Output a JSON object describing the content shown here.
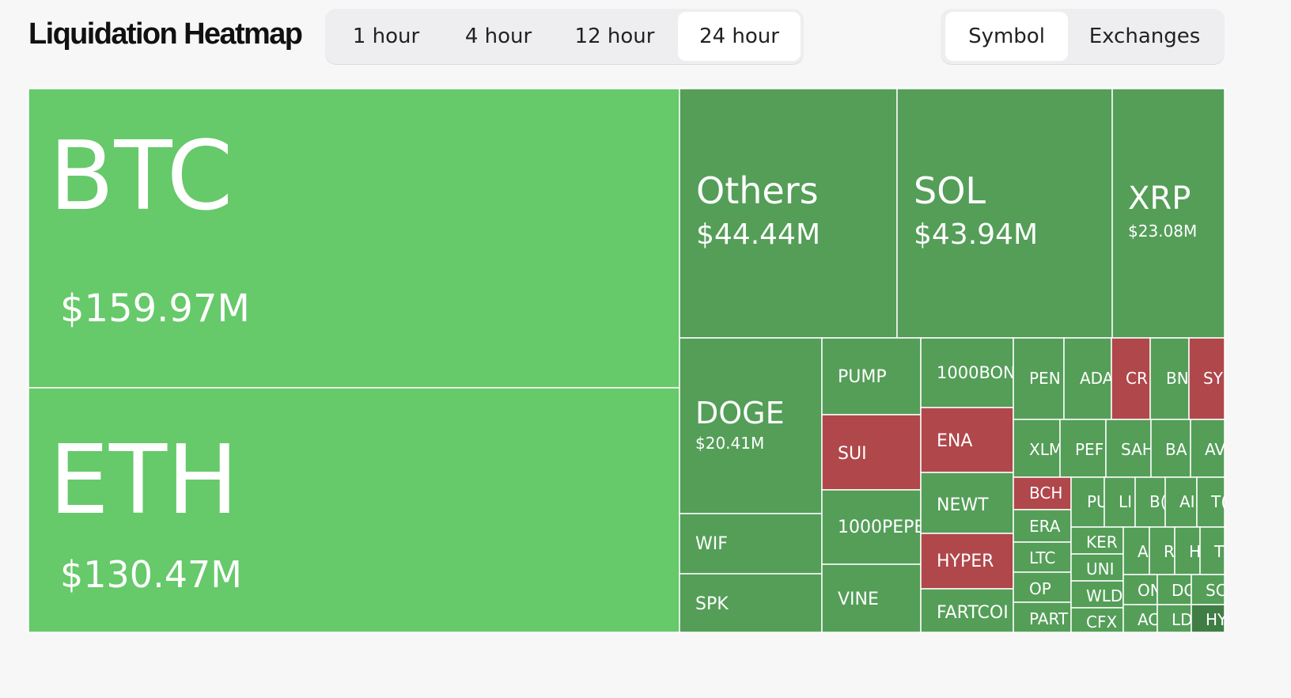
{
  "header": {
    "title": "Liquidation Heatmap"
  },
  "time_tabs": [
    {
      "label": "1 hour",
      "active": false
    },
    {
      "label": "4 hour",
      "active": false
    },
    {
      "label": "12 hour",
      "active": false
    },
    {
      "label": "24 hour",
      "active": true
    }
  ],
  "view_tabs": [
    {
      "label": "Symbol",
      "active": true
    },
    {
      "label": "Exchanges",
      "active": false
    }
  ],
  "colors": {
    "bright": "#66c96a",
    "green": "#549e58",
    "red": "#b0474b",
    "dark": "#3f7d45"
  },
  "chart_data": {
    "type": "treemap",
    "title": "",
    "units": "USD millions",
    "cells": [
      {
        "label": "BTC",
        "value": 159.97,
        "value_label": "$159.97M",
        "color": "bright"
      },
      {
        "label": "ETH",
        "value": 130.47,
        "value_label": "$130.47M",
        "color": "bright"
      },
      {
        "label": "Others",
        "value": 44.44,
        "value_label": "$44.44M",
        "color": "green"
      },
      {
        "label": "SOL",
        "value": 43.94,
        "value_label": "$43.94M",
        "color": "green"
      },
      {
        "label": "XRP",
        "value": 23.08,
        "value_label": "$23.08M",
        "color": "green"
      },
      {
        "label": "DOGE",
        "value": 20.41,
        "value_label": "$20.41M",
        "color": "green"
      },
      {
        "label": "WIF",
        "color": "green"
      },
      {
        "label": "SPK",
        "color": "green"
      },
      {
        "label": "PUMP",
        "color": "green"
      },
      {
        "label": "SUI",
        "color": "red"
      },
      {
        "label": "1000PEPE",
        "color": "green"
      },
      {
        "label": "VINE",
        "color": "green"
      },
      {
        "label": "1000BON",
        "color": "green"
      },
      {
        "label": "ENA",
        "color": "red"
      },
      {
        "label": "NEWT",
        "color": "green"
      },
      {
        "label": "HYPER",
        "color": "red"
      },
      {
        "label": "FARTCOI",
        "color": "green"
      },
      {
        "label": "PEN",
        "color": "green"
      },
      {
        "label": "ADA",
        "color": "green"
      },
      {
        "label": "CR",
        "color": "red"
      },
      {
        "label": "BN",
        "color": "green"
      },
      {
        "label": "SY",
        "color": "red"
      },
      {
        "label": "XLM",
        "color": "green"
      },
      {
        "label": "PEF",
        "color": "green"
      },
      {
        "label": "SAH",
        "color": "green"
      },
      {
        "label": "BA",
        "color": "green"
      },
      {
        "label": "AV",
        "color": "green"
      },
      {
        "label": "BCH",
        "color": "red"
      },
      {
        "label": "ERA",
        "color": "green"
      },
      {
        "label": "LTC",
        "color": "green"
      },
      {
        "label": "OP",
        "color": "green"
      },
      {
        "label": "PART",
        "color": "green"
      },
      {
        "label": "PU",
        "color": "green"
      },
      {
        "label": "LI",
        "color": "green"
      },
      {
        "label": "B(",
        "color": "green"
      },
      {
        "label": "AI",
        "color": "green"
      },
      {
        "label": "T(",
        "color": "green"
      },
      {
        "label": "KER",
        "color": "green"
      },
      {
        "label": "UNI",
        "color": "green"
      },
      {
        "label": "WLD",
        "color": "green"
      },
      {
        "label": "CFX",
        "color": "green"
      },
      {
        "label": "A",
        "color": "green"
      },
      {
        "label": "R",
        "color": "green"
      },
      {
        "label": "H",
        "color": "green"
      },
      {
        "label": "T",
        "color": "green"
      },
      {
        "label": "ON",
        "color": "green"
      },
      {
        "label": "DO",
        "color": "green"
      },
      {
        "label": "SC",
        "color": "green"
      },
      {
        "label": "AC",
        "color": "green"
      },
      {
        "label": "LD",
        "color": "green"
      },
      {
        "label": "HY",
        "color": "dark"
      }
    ]
  }
}
